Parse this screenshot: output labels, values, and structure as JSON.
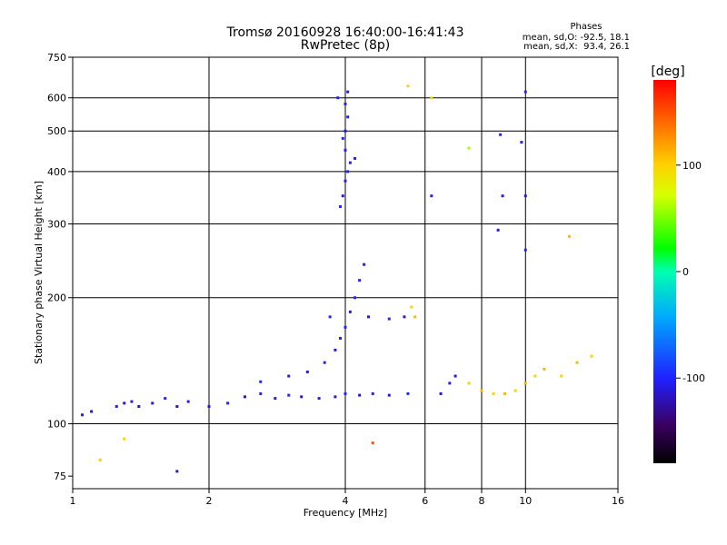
{
  "chart_data": {
    "type": "scatter",
    "title": "Tromsø 20160928 16:40:00-16:41:43",
    "subtitle": "RwPretec (8p)",
    "xlabel": "Frequency [MHz]",
    "ylabel": "Stationary phase Virtual Height [km]",
    "xscale": "log",
    "yscale": "log",
    "xlim": [
      1,
      16
    ],
    "ylim": [
      70,
      750
    ],
    "xticks": [
      1,
      2,
      4,
      6,
      8,
      10,
      16
    ],
    "xtick_labels": [
      "1",
      "2",
      "4",
      "6",
      "8",
      "10",
      "16"
    ],
    "yticks": [
      75,
      100,
      200,
      300,
      400,
      500,
      600,
      750
    ],
    "ytick_labels": [
      "75",
      "100",
      "200",
      "300",
      "400",
      "500",
      "600",
      "750"
    ],
    "grid": true,
    "phase_stats": {
      "heading": "Phases",
      "line_o": "mean, sd,O: -92.5, 18.1",
      "line_x": "mean, sd,X:  93.4, 26.1"
    },
    "colorbar": {
      "label": "[deg]",
      "range": [
        -180,
        180
      ],
      "ticks": [
        100,
        0,
        -100
      ],
      "tick_labels": [
        "100",
        "0",
        "-100"
      ],
      "colormap": "rainbow"
    },
    "series": [
      {
        "points": [
          [
            1.05,
            105,
            -110
          ],
          [
            1.1,
            107,
            -120
          ],
          [
            1.25,
            110,
            -100
          ],
          [
            1.3,
            112,
            -115
          ],
          [
            1.35,
            113,
            -105
          ],
          [
            1.4,
            110,
            -120
          ],
          [
            1.5,
            112,
            -110
          ],
          [
            1.6,
            115,
            -100
          ],
          [
            1.7,
            110,
            -115
          ],
          [
            1.8,
            113,
            -105
          ],
          [
            2.0,
            110,
            -110
          ],
          [
            2.2,
            112,
            -100
          ],
          [
            2.4,
            116,
            -115
          ],
          [
            2.6,
            118,
            -105
          ],
          [
            2.8,
            115,
            -110
          ],
          [
            3.0,
            117,
            -100
          ],
          [
            3.2,
            116,
            -115
          ],
          [
            3.5,
            115,
            -105
          ],
          [
            3.8,
            116,
            -110
          ],
          [
            4.0,
            118,
            -100
          ],
          [
            4.3,
            117,
            -115
          ],
          [
            4.6,
            118,
            -105
          ],
          [
            5.0,
            117,
            -110
          ],
          [
            5.5,
            118,
            -100
          ],
          [
            2.6,
            126,
            -100
          ],
          [
            3.0,
            130,
            -110
          ],
          [
            3.3,
            133,
            -105
          ],
          [
            3.6,
            140,
            -100
          ],
          [
            3.8,
            150,
            -110
          ],
          [
            3.9,
            160,
            -105
          ],
          [
            4.0,
            170,
            -100
          ],
          [
            4.1,
            185,
            -110
          ],
          [
            4.2,
            200,
            -100
          ],
          [
            4.3,
            220,
            -105
          ],
          [
            4.4,
            240,
            -110
          ],
          [
            3.7,
            180,
            -100
          ],
          [
            4.5,
            180,
            -110
          ],
          [
            5.0,
            178,
            -100
          ],
          [
            5.4,
            180,
            -110
          ],
          [
            5.6,
            190,
            100
          ],
          [
            5.7,
            180,
            110
          ],
          [
            3.9,
            330,
            -100
          ],
          [
            3.95,
            350,
            -110
          ],
          [
            4.0,
            380,
            -105
          ],
          [
            4.05,
            400,
            -100
          ],
          [
            4.1,
            420,
            -110
          ],
          [
            4.0,
            450,
            -105
          ],
          [
            3.95,
            480,
            -100
          ],
          [
            4.0,
            500,
            -110
          ],
          [
            4.05,
            540,
            -105
          ],
          [
            4.0,
            580,
            -100
          ],
          [
            4.05,
            620,
            -110
          ],
          [
            4.2,
            430,
            -105
          ],
          [
            3.85,
            600,
            -100
          ],
          [
            6.5,
            118,
            -110
          ],
          [
            6.8,
            125,
            -105
          ],
          [
            7.0,
            130,
            -110
          ],
          [
            7.5,
            125,
            100
          ],
          [
            8.0,
            120,
            110
          ],
          [
            8.5,
            118,
            100
          ],
          [
            9.0,
            118,
            110
          ],
          [
            9.5,
            120,
            100
          ],
          [
            10.0,
            125,
            110
          ],
          [
            10.5,
            130,
            100
          ],
          [
            11.0,
            135,
            110
          ],
          [
            12.0,
            130,
            100
          ],
          [
            13.0,
            140,
            110
          ],
          [
            14.0,
            145,
            100
          ],
          [
            10.0,
            620,
            -100
          ],
          [
            9.8,
            470,
            -105
          ],
          [
            10.0,
            350,
            -110
          ],
          [
            10.0,
            260,
            -100
          ],
          [
            12.5,
            280,
            110
          ],
          [
            6.2,
            600,
            90
          ],
          [
            5.5,
            640,
            100
          ],
          [
            6.2,
            350,
            -100
          ],
          [
            4.6,
            90,
            150
          ],
          [
            1.15,
            82,
            100
          ],
          [
            1.3,
            92,
            100
          ],
          [
            1.7,
            77,
            -110
          ],
          [
            8.7,
            290,
            -105
          ],
          [
            8.9,
            350,
            -110
          ],
          [
            8.8,
            490,
            -100
          ],
          [
            7.5,
            455,
            60
          ]
        ]
      }
    ]
  }
}
